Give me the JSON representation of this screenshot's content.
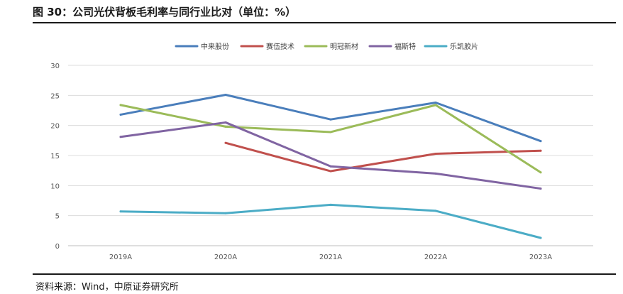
{
  "figure_title": "图 30：公司光伏背板毛利率与同行业比对（单位：%）",
  "source_note": "资料来源：Wind，中原证券研究所",
  "chart_data": {
    "type": "line",
    "categories": [
      "2019A",
      "2020A",
      "2021A",
      "2022A",
      "2023A"
    ],
    "ylim": [
      0,
      30
    ],
    "yticks": [
      0,
      5,
      10,
      15,
      20,
      25,
      30
    ],
    "grid": true,
    "legend_position": "top",
    "series": [
      {
        "name": "中来股份",
        "color": "#4a7ebb",
        "values": [
          21.8,
          25.1,
          21.0,
          23.8,
          17.4
        ]
      },
      {
        "name": "赛伍技术",
        "color": "#c0504d",
        "values": [
          null,
          17.1,
          12.4,
          15.3,
          15.8
        ]
      },
      {
        "name": "明冠新材",
        "color": "#9bbb59",
        "values": [
          23.4,
          19.8,
          18.9,
          23.4,
          12.2
        ]
      },
      {
        "name": "福斯特",
        "color": "#8064a2",
        "values": [
          18.1,
          20.5,
          13.2,
          12.0,
          9.5
        ]
      },
      {
        "name": "乐凯胶片",
        "color": "#4bacc6",
        "values": [
          5.7,
          5.4,
          6.8,
          5.8,
          1.3
        ]
      }
    ]
  }
}
